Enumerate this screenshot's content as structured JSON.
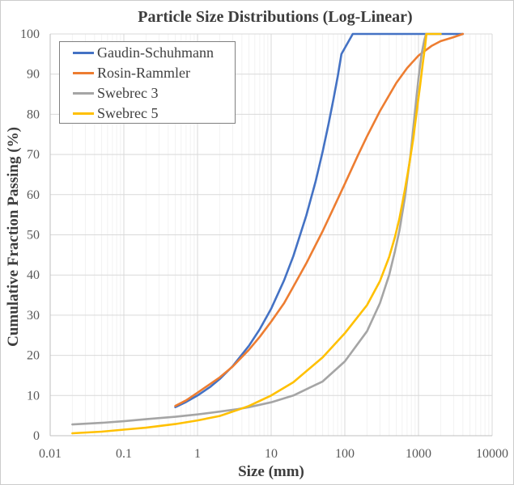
{
  "chart_data": {
    "type": "line",
    "title": "Particle Size Distributions (Log-Linear)",
    "xlabel": "Size (mm)",
    "ylabel": "Cumulative Fraction Passing (%)",
    "x_scale": "log",
    "y_scale": "linear",
    "xlim": [
      0.01,
      10000
    ],
    "ylim": [
      0,
      100
    ],
    "x_ticks": [
      0.01,
      0.1,
      1,
      10,
      100,
      1000,
      10000
    ],
    "x_tick_labels": [
      "0.01",
      "0.1",
      "1",
      "10",
      "100",
      "1000",
      "10000"
    ],
    "y_ticks": [
      0,
      10,
      20,
      30,
      40,
      50,
      60,
      70,
      80,
      90,
      100
    ],
    "grid": "on",
    "legend_position": "top-left",
    "colors": {
      "grid_major": "#d9d9d9",
      "grid_minor": "#f2f2f2",
      "axis": "#bfbfbf",
      "tick_text": "#595959",
      "title_text": "#3d3d3d"
    },
    "series": [
      {
        "name": "Gaudin-Schuhmann",
        "color": "#4472c4",
        "points": [
          [
            0.5,
            7.1
          ],
          [
            0.7,
            8.4
          ],
          [
            1,
            10
          ],
          [
            1.5,
            12.2
          ],
          [
            2,
            14.1
          ],
          [
            3,
            17.3
          ],
          [
            5,
            22.4
          ],
          [
            7,
            26.5
          ],
          [
            10,
            31.6
          ],
          [
            15,
            38.7
          ],
          [
            20,
            44.7
          ],
          [
            30,
            54.8
          ],
          [
            40,
            63.2
          ],
          [
            50,
            70.7
          ],
          [
            60,
            77.5
          ],
          [
            70,
            83.7
          ],
          [
            80,
            89.4
          ],
          [
            90,
            95
          ],
          [
            128,
            100
          ],
          [
            500,
            100
          ],
          [
            1000,
            100
          ],
          [
            2000,
            100
          ],
          [
            4000,
            100
          ]
        ]
      },
      {
        "name": "Rosin-Rammler",
        "color": "#ed7d31",
        "points": [
          [
            0.5,
            7.4
          ],
          [
            0.7,
            8.8
          ],
          [
            1,
            10.7
          ],
          [
            2,
            14.5
          ],
          [
            3,
            17.2
          ],
          [
            5,
            21.4
          ],
          [
            7,
            24.6
          ],
          [
            10,
            28.4
          ],
          [
            15,
            33
          ],
          [
            20,
            37.1
          ],
          [
            30,
            42.9
          ],
          [
            50,
            50.9
          ],
          [
            70,
            56.6
          ],
          [
            100,
            62.7
          ],
          [
            150,
            69.7
          ],
          [
            200,
            74.5
          ],
          [
            300,
            80.8
          ],
          [
            500,
            87.8
          ],
          [
            700,
            91.5
          ],
          [
            1000,
            94.6
          ],
          [
            1500,
            97
          ],
          [
            2000,
            98.2
          ],
          [
            3000,
            99.2
          ],
          [
            4000,
            100
          ]
        ]
      },
      {
        "name": "Swebrec 3",
        "color": "#a5a5a5",
        "points": [
          [
            0.02,
            2.8
          ],
          [
            0.05,
            3.2
          ],
          [
            0.1,
            3.6
          ],
          [
            0.2,
            4.1
          ],
          [
            0.5,
            4.7
          ],
          [
            1,
            5.3
          ],
          [
            2,
            6
          ],
          [
            3.5,
            6.6
          ],
          [
            5,
            7.1
          ],
          [
            10,
            8.3
          ],
          [
            20,
            10
          ],
          [
            50,
            13.5
          ],
          [
            100,
            18.5
          ],
          [
            200,
            26
          ],
          [
            300,
            33
          ],
          [
            400,
            40
          ],
          [
            480,
            46
          ],
          [
            550,
            51
          ],
          [
            650,
            59
          ],
          [
            780,
            70
          ],
          [
            900,
            81
          ],
          [
            1000,
            89
          ],
          [
            1100,
            95
          ],
          [
            1200,
            98.5
          ],
          [
            1270,
            100
          ]
        ]
      },
      {
        "name": "Swebrec 5",
        "color": "#ffc000",
        "points": [
          [
            0.02,
            0.6
          ],
          [
            0.05,
            1
          ],
          [
            0.1,
            1.5
          ],
          [
            0.2,
            2
          ],
          [
            0.5,
            2.9
          ],
          [
            1,
            3.8
          ],
          [
            2,
            4.9
          ],
          [
            3.5,
            6.4
          ],
          [
            5,
            7.4
          ],
          [
            10,
            10
          ],
          [
            20,
            13.3
          ],
          [
            50,
            19.5
          ],
          [
            100,
            25.5
          ],
          [
            200,
            32.5
          ],
          [
            300,
            38.5
          ],
          [
            400,
            44.5
          ],
          [
            480,
            49.5
          ],
          [
            550,
            54
          ],
          [
            650,
            61
          ],
          [
            750,
            67.5
          ],
          [
            850,
            74
          ],
          [
            950,
            81
          ],
          [
            1050,
            87
          ],
          [
            1150,
            93
          ],
          [
            1230,
            97
          ],
          [
            1280,
            100
          ],
          [
            2000,
            100
          ]
        ]
      }
    ]
  }
}
